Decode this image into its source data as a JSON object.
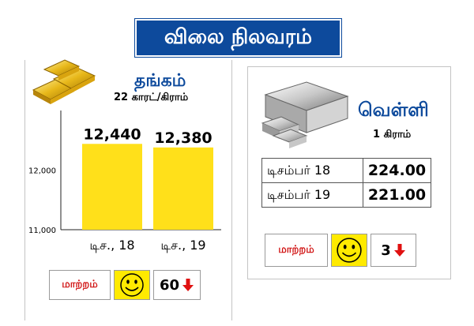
{
  "title": "விலை நிலவரம்",
  "gold": {
    "heading": "தங்கம்",
    "unit": "22 காரட்/கிராம்",
    "change_label": "மாற்றம்",
    "change_value": "60",
    "change_direction": "down"
  },
  "silver": {
    "heading": "வெள்ளி",
    "unit": "1 கிராம்",
    "rates": [
      {
        "date": "டிசம்பர் 18",
        "price": "224.00"
      },
      {
        "date": "டிசம்பர் 19",
        "price": "221.00"
      }
    ],
    "change_label": "மாற்றம்",
    "change_value": "3",
    "change_direction": "down"
  },
  "colors": {
    "title_bg": "#0d4a9c",
    "heading": "#0d4a9c",
    "bar": "#ffe01a",
    "smiley_bg": "#ffea00",
    "arrow": "#e01010",
    "change_label": "#d01010"
  },
  "chart_data": {
    "type": "bar",
    "categories": [
      "டிச., 18",
      "டிச., 19"
    ],
    "values": [
      12440,
      12380
    ],
    "value_labels": [
      "12,440",
      "12,380"
    ],
    "yticks": [
      11000,
      12000
    ],
    "ytick_labels": [
      "11,000",
      "12,000"
    ],
    "ylim": [
      11000,
      13000
    ],
    "grid": false
  }
}
